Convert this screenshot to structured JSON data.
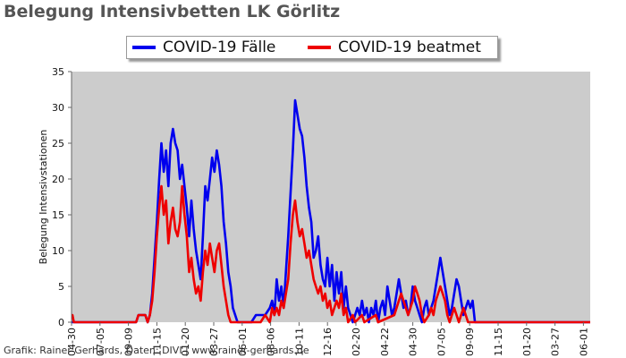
{
  "chart_data": {
    "type": "line",
    "title": "Belegung Intensivbetten LK Görlitz",
    "ylabel": "Belegung Intensivstationen",
    "xlabel": "",
    "ylim": [
      0,
      35
    ],
    "yticks": [
      0,
      5,
      10,
      15,
      20,
      25,
      30,
      35
    ],
    "x_tick_labels": [
      "04-30",
      "07-05",
      "09-09",
      "11-15",
      "01-20",
      "03-27",
      "06-01",
      "08-06",
      "10-11",
      "12-16",
      "02-20",
      "04-22",
      "04-30",
      "07-05",
      "09-09",
      "11-15",
      "01-20",
      "03-27",
      "06-01"
    ],
    "grid": false,
    "legend_position": "top-center",
    "x_range_days": [
      0,
      1125
    ],
    "series": [
      {
        "name": "COVID-19 Fälle",
        "color": "#0000ee",
        "points": [
          [
            0,
            0
          ],
          [
            140,
            0
          ],
          [
            145,
            1
          ],
          [
            160,
            1
          ],
          [
            165,
            0
          ],
          [
            170,
            1
          ],
          [
            175,
            4
          ],
          [
            180,
            9
          ],
          [
            185,
            14
          ],
          [
            190,
            20
          ],
          [
            195,
            25
          ],
          [
            200,
            21
          ],
          [
            205,
            24
          ],
          [
            210,
            19
          ],
          [
            215,
            25
          ],
          [
            220,
            27
          ],
          [
            225,
            25
          ],
          [
            230,
            24
          ],
          [
            235,
            20
          ],
          [
            240,
            22
          ],
          [
            245,
            19
          ],
          [
            250,
            16
          ],
          [
            255,
            12
          ],
          [
            260,
            17
          ],
          [
            265,
            13
          ],
          [
            270,
            10
          ],
          [
            275,
            8
          ],
          [
            280,
            6
          ],
          [
            285,
            12
          ],
          [
            290,
            19
          ],
          [
            295,
            17
          ],
          [
            300,
            20
          ],
          [
            305,
            23
          ],
          [
            310,
            21
          ],
          [
            315,
            24
          ],
          [
            320,
            22
          ],
          [
            325,
            19
          ],
          [
            330,
            14
          ],
          [
            335,
            11
          ],
          [
            340,
            7
          ],
          [
            345,
            5
          ],
          [
            350,
            2
          ],
          [
            355,
            1
          ],
          [
            360,
            0
          ],
          [
            390,
            0
          ],
          [
            400,
            1
          ],
          [
            420,
            1
          ],
          [
            430,
            2
          ],
          [
            435,
            3
          ],
          [
            440,
            1
          ],
          [
            445,
            6
          ],
          [
            450,
            3
          ],
          [
            455,
            5
          ],
          [
            460,
            2
          ],
          [
            465,
            7
          ],
          [
            470,
            12
          ],
          [
            475,
            18
          ],
          [
            480,
            24
          ],
          [
            485,
            31
          ],
          [
            490,
            29
          ],
          [
            495,
            27
          ],
          [
            500,
            26
          ],
          [
            505,
            23
          ],
          [
            510,
            19
          ],
          [
            515,
            16
          ],
          [
            520,
            14
          ],
          [
            525,
            9
          ],
          [
            530,
            10
          ],
          [
            535,
            12
          ],
          [
            540,
            8
          ],
          [
            545,
            6
          ],
          [
            550,
            5
          ],
          [
            555,
            9
          ],
          [
            560,
            5
          ],
          [
            565,
            8
          ],
          [
            570,
            3
          ],
          [
            575,
            7
          ],
          [
            580,
            4
          ],
          [
            585,
            7
          ],
          [
            590,
            2
          ],
          [
            595,
            5
          ],
          [
            600,
            2
          ],
          [
            605,
            1
          ],
          [
            610,
            0
          ],
          [
            615,
            1
          ],
          [
            620,
            2
          ],
          [
            625,
            1
          ],
          [
            630,
            3
          ],
          [
            635,
            1
          ],
          [
            640,
            2
          ],
          [
            645,
            0
          ],
          [
            650,
            2
          ],
          [
            655,
            1
          ],
          [
            660,
            3
          ],
          [
            665,
            0
          ],
          [
            670,
            2
          ],
          [
            675,
            3
          ],
          [
            680,
            1
          ],
          [
            685,
            5
          ],
          [
            690,
            3
          ],
          [
            695,
            1
          ],
          [
            700,
            2
          ],
          [
            705,
            4
          ],
          [
            710,
            6
          ],
          [
            715,
            4
          ],
          [
            720,
            2
          ],
          [
            725,
            3
          ],
          [
            730,
            1
          ],
          [
            735,
            2
          ],
          [
            740,
            5
          ],
          [
            745,
            3
          ],
          [
            750,
            2
          ],
          [
            755,
            1
          ],
          [
            760,
            0
          ],
          [
            765,
            2
          ],
          [
            770,
            3
          ],
          [
            775,
            1
          ],
          [
            780,
            2
          ],
          [
            785,
            3
          ],
          [
            790,
            5
          ],
          [
            795,
            7
          ],
          [
            800,
            9
          ],
          [
            805,
            7
          ],
          [
            810,
            5
          ],
          [
            815,
            3
          ],
          [
            820,
            1
          ],
          [
            825,
            2
          ],
          [
            830,
            4
          ],
          [
            835,
            6
          ],
          [
            840,
            5
          ],
          [
            845,
            3
          ],
          [
            850,
            1
          ],
          [
            855,
            2
          ],
          [
            860,
            3
          ],
          [
            865,
            2
          ],
          [
            870,
            3
          ],
          [
            875,
            0
          ],
          [
            1125,
            0
          ]
        ]
      },
      {
        "name": "COVID-19 beatmet",
        "color": "#ee0000",
        "points": [
          [
            0,
            1
          ],
          [
            2,
            1
          ],
          [
            5,
            0
          ],
          [
            140,
            0
          ],
          [
            145,
            1
          ],
          [
            160,
            1
          ],
          [
            165,
            0
          ],
          [
            170,
            1
          ],
          [
            175,
            3
          ],
          [
            180,
            7
          ],
          [
            185,
            12
          ],
          [
            190,
            16
          ],
          [
            195,
            19
          ],
          [
            200,
            15
          ],
          [
            205,
            17
          ],
          [
            210,
            11
          ],
          [
            215,
            14
          ],
          [
            220,
            16
          ],
          [
            225,
            13
          ],
          [
            230,
            12
          ],
          [
            235,
            14
          ],
          [
            240,
            19
          ],
          [
            245,
            15
          ],
          [
            250,
            12
          ],
          [
            255,
            7
          ],
          [
            260,
            9
          ],
          [
            265,
            6
          ],
          [
            270,
            4
          ],
          [
            275,
            5
          ],
          [
            280,
            3
          ],
          [
            285,
            7
          ],
          [
            290,
            10
          ],
          [
            295,
            8
          ],
          [
            300,
            11
          ],
          [
            305,
            9
          ],
          [
            310,
            7
          ],
          [
            315,
            10
          ],
          [
            320,
            11
          ],
          [
            325,
            8
          ],
          [
            330,
            5
          ],
          [
            335,
            3
          ],
          [
            340,
            1
          ],
          [
            345,
            0
          ],
          [
            410,
            0
          ],
          [
            420,
            1
          ],
          [
            430,
            0
          ],
          [
            435,
            2
          ],
          [
            440,
            1
          ],
          [
            445,
            2
          ],
          [
            450,
            1
          ],
          [
            455,
            3
          ],
          [
            460,
            2
          ],
          [
            465,
            4
          ],
          [
            470,
            6
          ],
          [
            475,
            11
          ],
          [
            480,
            15
          ],
          [
            485,
            17
          ],
          [
            490,
            14
          ],
          [
            495,
            12
          ],
          [
            500,
            13
          ],
          [
            505,
            11
          ],
          [
            510,
            9
          ],
          [
            515,
            10
          ],
          [
            520,
            8
          ],
          [
            525,
            6
          ],
          [
            530,
            5
          ],
          [
            535,
            4
          ],
          [
            540,
            5
          ],
          [
            545,
            3
          ],
          [
            550,
            4
          ],
          [
            555,
            2
          ],
          [
            560,
            3
          ],
          [
            565,
            1
          ],
          [
            570,
            2
          ],
          [
            575,
            3
          ],
          [
            580,
            2
          ],
          [
            585,
            4
          ],
          [
            590,
            1
          ],
          [
            595,
            2
          ],
          [
            600,
            0
          ],
          [
            610,
            1
          ],
          [
            615,
            0
          ],
          [
            630,
            1
          ],
          [
            635,
            0
          ],
          [
            660,
            1
          ],
          [
            665,
            0
          ],
          [
            700,
            1
          ],
          [
            705,
            2
          ],
          [
            710,
            3
          ],
          [
            715,
            4
          ],
          [
            720,
            3
          ],
          [
            725,
            2
          ],
          [
            730,
            1
          ],
          [
            735,
            2
          ],
          [
            740,
            3
          ],
          [
            745,
            5
          ],
          [
            750,
            4
          ],
          [
            755,
            3
          ],
          [
            760,
            1
          ],
          [
            765,
            0
          ],
          [
            775,
            1
          ],
          [
            780,
            2
          ],
          [
            785,
            1
          ],
          [
            790,
            3
          ],
          [
            795,
            4
          ],
          [
            800,
            5
          ],
          [
            805,
            4
          ],
          [
            810,
            3
          ],
          [
            815,
            1
          ],
          [
            820,
            0
          ],
          [
            825,
            1
          ],
          [
            830,
            2
          ],
          [
            835,
            1
          ],
          [
            840,
            0
          ],
          [
            845,
            1
          ],
          [
            850,
            2
          ],
          [
            855,
            1
          ],
          [
            860,
            0
          ],
          [
            1125,
            0
          ]
        ]
      }
    ]
  },
  "credit": "Grafik: Rainer Gerhards, Daten: DIVI | www.rainer-gerhards.de"
}
